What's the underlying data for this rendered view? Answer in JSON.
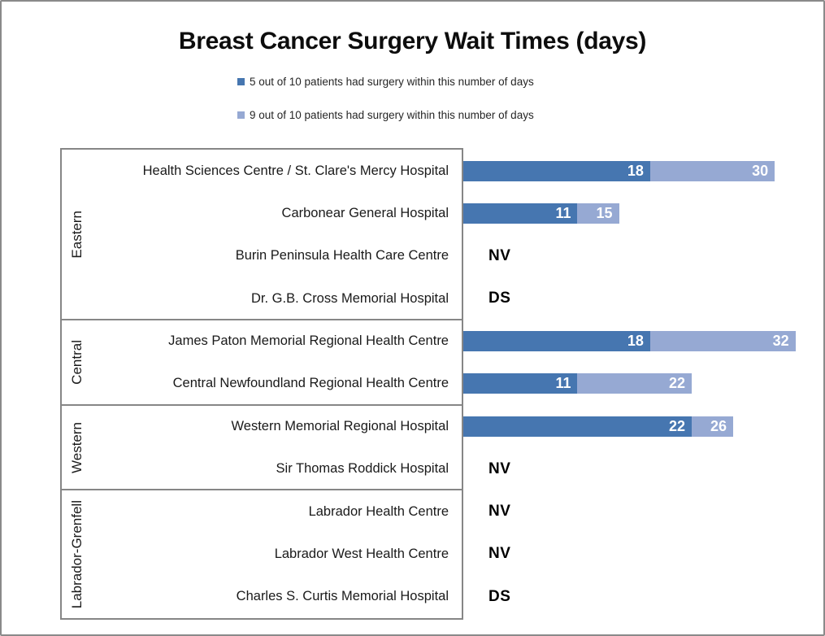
{
  "title": "Breast Cancer Surgery Wait Times (days)",
  "colors": {
    "dark": "#4676B0",
    "light": "#96A9D3"
  },
  "legend": [
    {
      "label": "5 out of 10 patients had surgery within this number of days",
      "color": "#4676B0"
    },
    {
      "label": "9 out of 10 patients had surgery within this number of days",
      "color": "#96A9D3"
    }
  ],
  "chart_data": {
    "type": "bar",
    "orientation": "horizontal",
    "title": "Breast Cancer Surgery Wait Times (days)",
    "xlim": [
      0,
      35
    ],
    "grid": false,
    "legend_position": "top-left",
    "series_names": [
      "5 out of 10 patients had surgery within this number of days",
      "9 out of 10 patients had surgery within this number of days"
    ],
    "groups": [
      {
        "name": "Eastern",
        "row_count": 4
      },
      {
        "name": "Central",
        "row_count": 2
      },
      {
        "name": "Western",
        "row_count": 2
      },
      {
        "name": "Labrador-Grenfell",
        "row_count": 3
      }
    ],
    "rows": [
      {
        "region": "Eastern",
        "label": "Health Sciences Centre / St. Clare's Mercy Hospital",
        "v50": 18,
        "v90": 30,
        "seg2": 12
      },
      {
        "region": "Eastern",
        "label": "Carbonear General Hospital",
        "v50": 11,
        "v90": 15,
        "seg2": 4
      },
      {
        "region": "Eastern",
        "label": "Burin Peninsula Health Care Centre",
        "note": "NV"
      },
      {
        "region": "Eastern",
        "label": "Dr. G.B. Cross Memorial Hospital",
        "note": "DS"
      },
      {
        "region": "Central",
        "label": "James Paton Memorial Regional Health Centre",
        "v50": 18,
        "v90": 32,
        "seg2": 14
      },
      {
        "region": "Central",
        "label": "Central Newfoundland Regional Health Centre",
        "v50": 11,
        "v90": 22,
        "seg2": 11
      },
      {
        "region": "Western",
        "label": "Western Memorial Regional Hospital",
        "v50": 22,
        "v90": 26,
        "seg2": 4
      },
      {
        "region": "Western",
        "label": "Sir Thomas Roddick Hospital",
        "note": "NV"
      },
      {
        "region": "Labrador-Grenfell",
        "label": "Labrador Health Centre",
        "note": "NV"
      },
      {
        "region": "Labrador-Grenfell",
        "label": "Labrador West Health Centre",
        "note": "NV"
      },
      {
        "region": "Labrador-Grenfell",
        "label": "Charles S. Curtis Memorial Hospital",
        "note": "DS"
      }
    ]
  }
}
